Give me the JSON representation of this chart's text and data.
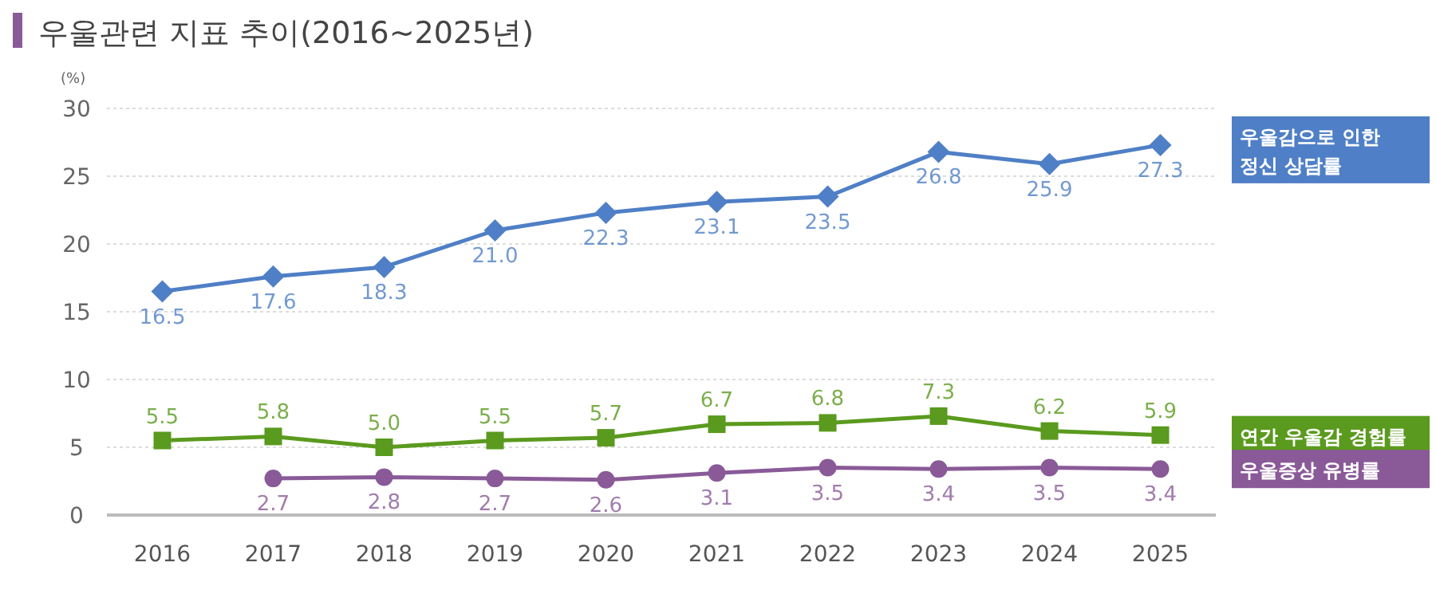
{
  "chart_data": {
    "type": "line",
    "title": "우울관련 지표 추이(2016~2025년)",
    "ylabel": "(%)",
    "categories": [
      "2016",
      "2017",
      "2018",
      "2019",
      "2020",
      "2021",
      "2022",
      "2023",
      "2024",
      "2025"
    ],
    "ylim": [
      0,
      30
    ],
    "yticks": [
      0,
      5,
      10,
      15,
      20,
      25,
      30
    ],
    "grid": "y",
    "legend": "right",
    "series": [
      {
        "name": "우울감으로 인한 정신 상담률",
        "color": "#4f7fc6",
        "marker": "diamond",
        "values": [
          16.5,
          17.6,
          18.3,
          21.0,
          22.3,
          23.1,
          23.5,
          26.8,
          25.9,
          27.3
        ],
        "value_labels": [
          "16.5",
          "17.6",
          "18.3",
          "21.0",
          "22.3",
          "23.1",
          "23.5",
          "26.8",
          "25.9",
          "27.3"
        ]
      },
      {
        "name": "연간 우울감 경험률",
        "color": "#5a9a1e",
        "marker": "square",
        "values": [
          5.5,
          5.8,
          5.0,
          5.5,
          5.7,
          6.7,
          6.8,
          7.3,
          6.2,
          5.9
        ],
        "value_labels": [
          "5.5",
          "5.8",
          "5.0",
          "5.5",
          "5.7",
          "6.7",
          "6.8",
          "7.3",
          "6.2",
          "5.9"
        ]
      },
      {
        "name": "우울증상 유병률",
        "color": "#8a5a98",
        "marker": "circle",
        "values": [
          null,
          2.7,
          2.8,
          2.7,
          2.6,
          3.1,
          3.5,
          3.4,
          3.5,
          3.4
        ],
        "value_labels": [
          null,
          "2.7",
          "2.8",
          "2.7",
          "2.6",
          "3.1",
          "3.5",
          "3.4",
          "3.5",
          "3.4"
        ]
      }
    ]
  }
}
